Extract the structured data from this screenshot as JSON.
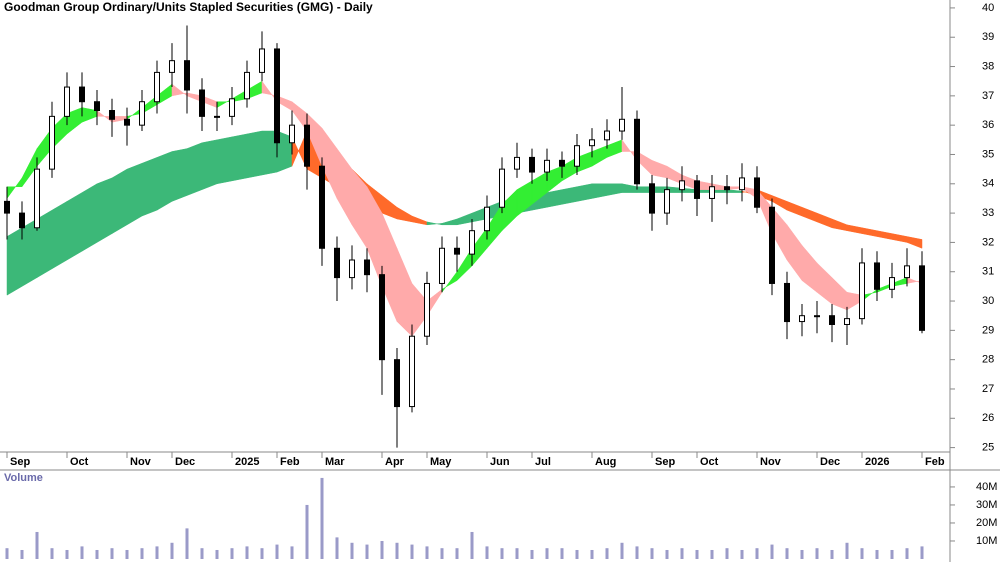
{
  "chart_data": [
    {
      "type": "candlestick",
      "title": "Goodman Group Ordinary/Units Stapled Securities (GMG) - Daily",
      "categories": [
        "Sep",
        null,
        null,
        null,
        "Oct",
        null,
        null,
        null,
        "Nov",
        null,
        null,
        "Dec",
        null,
        null,
        null,
        "2025",
        null,
        null,
        "Feb",
        null,
        null,
        "Mar",
        null,
        null,
        null,
        "Apr",
        null,
        null,
        "May",
        null,
        null,
        null,
        "Jun",
        null,
        null,
        "Jul",
        null,
        null,
        null,
        "Aug",
        null,
        null,
        null,
        "Sep",
        null,
        null,
        "Oct",
        null,
        null,
        null,
        "Nov",
        null,
        null,
        null,
        "Dec",
        null,
        null,
        "2026",
        null,
        null,
        null,
        "Feb"
      ],
      "open": [
        33.4,
        33.0,
        32.5,
        34.5,
        36.3,
        37.3,
        36.8,
        36.5,
        36.2,
        36.0,
        36.8,
        37.8,
        38.2,
        37.2,
        36.3,
        36.3,
        36.9,
        37.8,
        38.6,
        35.4,
        36.0,
        34.6,
        31.8,
        30.8,
        31.4,
        30.9,
        28.0,
        26.4,
        28.8,
        30.6,
        31.8,
        31.6,
        32.4,
        33.2,
        34.5,
        34.9,
        34.4,
        34.8,
        34.6,
        35.3,
        35.5,
        35.8,
        36.2,
        34.0,
        33.0,
        33.8,
        34.1,
        33.5,
        33.9,
        33.8,
        34.2,
        33.2,
        30.6,
        29.3,
        29.5,
        29.5,
        29.2,
        29.4,
        31.3,
        30.4,
        30.8,
        31.2
      ],
      "high": [
        33.9,
        33.4,
        34.9,
        36.8,
        37.8,
        37.8,
        37.2,
        36.9,
        36.6,
        37.2,
        38.2,
        38.8,
        39.4,
        37.6,
        36.8,
        37.3,
        38.2,
        39.2,
        38.8,
        36.5,
        36.4,
        34.9,
        32.2,
        31.9,
        31.8,
        31.2,
        28.4,
        29.2,
        31.0,
        32.2,
        32.2,
        32.8,
        33.6,
        34.9,
        35.4,
        35.2,
        35.2,
        35.1,
        35.7,
        35.9,
        36.2,
        37.3,
        36.5,
        34.3,
        34.2,
        34.6,
        34.3,
        34.3,
        34.3,
        34.7,
        34.6,
        33.5,
        31.0,
        29.9,
        30.0,
        29.9,
        29.8,
        31.8,
        31.7,
        31.3,
        31.8,
        31.7
      ],
      "low": [
        32.1,
        32.1,
        32.4,
        34.2,
        36.0,
        36.3,
        36.0,
        35.6,
        35.3,
        35.8,
        36.4,
        37.3,
        36.4,
        35.8,
        35.8,
        36.0,
        36.6,
        37.5,
        34.9,
        35.0,
        33.8,
        31.2,
        30.0,
        30.4,
        30.3,
        26.8,
        25.0,
        26.2,
        28.5,
        30.3,
        31.0,
        31.2,
        32.1,
        33.0,
        34.2,
        34.0,
        34.1,
        34.2,
        34.3,
        34.9,
        35.2,
        35.5,
        33.8,
        32.4,
        32.6,
        33.4,
        32.9,
        32.7,
        33.3,
        33.4,
        33.0,
        30.2,
        28.7,
        28.8,
        28.9,
        28.6,
        28.5,
        29.2,
        30.0,
        30.1,
        30.5,
        28.9
      ],
      "close": [
        33.0,
        32.5,
        34.5,
        36.3,
        37.3,
        36.8,
        36.5,
        36.2,
        36.0,
        36.8,
        37.8,
        38.2,
        37.2,
        36.3,
        36.3,
        36.9,
        37.8,
        38.6,
        35.4,
        36.0,
        34.6,
        31.8,
        30.8,
        31.4,
        30.9,
        28.0,
        26.4,
        28.8,
        30.6,
        31.8,
        31.6,
        32.4,
        33.2,
        34.5,
        34.9,
        34.4,
        34.8,
        34.6,
        35.3,
        35.5,
        35.8,
        36.2,
        34.0,
        33.0,
        33.8,
        34.1,
        33.5,
        33.9,
        33.8,
        34.2,
        33.2,
        30.6,
        29.3,
        29.5,
        29.5,
        29.2,
        29.4,
        31.3,
        30.4,
        30.8,
        31.2,
        29.0
      ],
      "ribbons": [
        {
          "lines": [
            [
              32.2,
              32.5,
              32.8,
              33.1,
              33.4,
              33.7,
              34.0,
              34.2,
              34.5,
              34.7,
              34.9,
              35.1,
              35.2,
              35.4,
              35.5,
              35.6,
              35.7,
              35.8,
              35.8,
              35.6,
              34.5,
              34.2,
              33.9,
              33.6,
              33.3,
              33.0,
              32.8,
              32.7,
              32.6,
              32.65,
              32.8,
              33.0,
              33.2,
              33.4,
              33.5,
              33.6,
              33.7,
              33.8,
              33.9,
              34.0,
              34.0,
              34.0,
              33.9,
              33.9,
              33.9,
              33.85,
              33.8,
              33.8,
              33.8,
              33.75,
              33.6,
              33.4,
              33.1,
              32.9,
              32.7,
              32.5,
              32.4,
              32.3,
              32.2,
              32.1,
              32.0,
              31.8
            ],
            [
              30.2,
              30.5,
              30.8,
              31.1,
              31.4,
              31.7,
              32.0,
              32.3,
              32.6,
              32.9,
              33.1,
              33.4,
              33.6,
              33.8,
              34.0,
              34.1,
              34.2,
              34.3,
              34.4,
              34.6,
              35.8,
              35.3,
              34.9,
              34.5,
              34.0,
              33.6,
              33.2,
              32.9,
              32.7,
              32.6,
              32.6,
              32.7,
              32.8,
              32.9,
              33.0,
              33.1,
              33.2,
              33.3,
              33.4,
              33.5,
              33.6,
              33.7,
              33.7,
              33.7,
              33.7,
              33.7,
              33.7,
              33.7,
              33.7,
              33.7,
              33.8,
              33.6,
              33.4,
              33.2,
              33.0,
              32.8,
              32.6,
              32.5,
              32.4,
              32.3,
              32.2,
              32.1
            ]
          ],
          "colors": [
            "#3cb878",
            "#ff6a2a"
          ]
        },
        {
          "lines": [
            [
              33.5,
              34.2,
              35.2,
              35.9,
              36.4,
              36.6,
              36.5,
              36.1,
              36.2,
              36.6,
              37.0,
              37.4,
              37.0,
              36.8,
              36.6,
              36.9,
              37.2,
              37.5,
              36.8,
              36.5,
              35.8,
              34.6,
              33.5,
              32.6,
              31.8,
              30.5,
              29.3,
              28.8,
              29.5,
              30.3,
              31.0,
              31.8,
              32.5,
              33.3,
              33.8,
              34.1,
              34.4,
              34.6,
              34.9,
              35.1,
              35.3,
              35.5,
              34.8,
              34.3,
              34.2,
              34.0,
              33.8,
              33.8,
              33.8,
              33.85,
              33.5,
              32.3,
              31.4,
              30.7,
              30.3,
              29.9,
              29.7,
              30.0,
              30.4,
              30.6,
              30.8,
              30.6
            ],
            [
              33.9,
              33.9,
              34.6,
              35.2,
              35.7,
              36.1,
              36.3,
              36.3,
              36.3,
              36.4,
              36.7,
              37.0,
              37.1,
              37.0,
              36.8,
              36.8,
              36.9,
              37.1,
              37.0,
              36.8,
              36.4,
              35.9,
              35.2,
              34.5,
              33.9,
              33.0,
              31.8,
              30.6,
              30.0,
              30.4,
              30.7,
              31.2,
              31.8,
              32.4,
              32.9,
              33.3,
              33.7,
              34.1,
              34.4,
              34.6,
              34.9,
              35.1,
              35.1,
              34.8,
              34.6,
              34.3,
              34.1,
              34.0,
              33.9,
              33.9,
              33.8,
              33.2,
              32.6,
              31.9,
              31.3,
              30.8,
              30.3,
              30.2,
              30.3,
              30.5,
              30.6,
              30.7
            ]
          ],
          "colors": [
            "#33ee33",
            "#ffaaaa"
          ]
        }
      ],
      "up_color": "#ffffff",
      "down_color": "#000000",
      "ylim": [
        24.85,
        40.27
      ],
      "yticks": [
        25,
        26,
        27,
        28,
        29,
        30,
        31,
        32,
        33,
        34,
        35,
        36,
        37,
        38,
        39,
        40
      ]
    },
    {
      "type": "bar",
      "title": "Volume",
      "values": [
        6000000,
        5000000,
        15000000,
        6000000,
        5000000,
        7000000,
        5000000,
        6000000,
        5000000,
        6000000,
        7000000,
        9000000,
        17000000,
        6000000,
        5000000,
        6000000,
        7000000,
        6000000,
        8000000,
        7000000,
        30000000,
        45000000,
        12000000,
        9000000,
        8000000,
        10000000,
        9000000,
        8000000,
        7000000,
        6000000,
        6000000,
        15000000,
        7000000,
        6000000,
        6000000,
        5000000,
        6000000,
        6000000,
        5000000,
        5000000,
        6000000,
        9000000,
        7000000,
        6000000,
        5000000,
        6000000,
        5000000,
        5000000,
        6000000,
        5000000,
        6000000,
        8000000,
        6000000,
        5000000,
        6000000,
        5000000,
        9000000,
        6000000,
        5000000,
        5000000,
        6000000,
        7000000
      ],
      "color": "#9a9ac8",
      "ylim": [
        0,
        49400000
      ],
      "yticks": [
        {
          "value": 10000000,
          "label": "10M"
        },
        {
          "value": 20000000,
          "label": "20M"
        },
        {
          "value": 30000000,
          "label": "30M"
        },
        {
          "value": 40000000,
          "label": "40M"
        }
      ]
    }
  ]
}
